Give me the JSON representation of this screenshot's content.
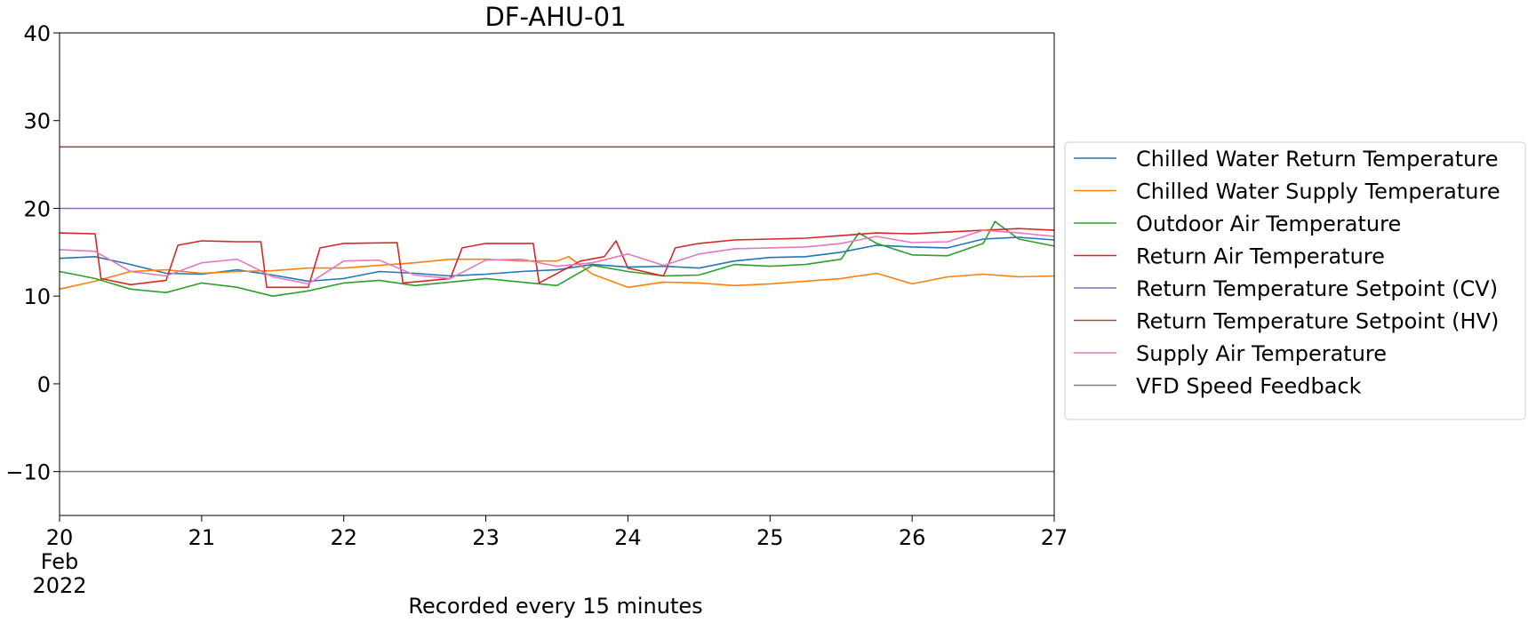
{
  "chart_data": {
    "type": "line",
    "title": "DF-AHU-01",
    "xlabel": "Recorded every 15 minutes",
    "ylabel": "",
    "x_range": [
      "2022-02-20",
      "2022-02-27"
    ],
    "ylim": [
      -15,
      40
    ],
    "y_ticks": [
      -10,
      0,
      10,
      20,
      30,
      40
    ],
    "y_tick_labels": [
      "−10",
      "0",
      "10",
      "20",
      "30",
      "40"
    ],
    "x_ticks": [
      {
        "date": "2022-02-20",
        "label": "20",
        "sublabels": [
          "Feb",
          "2022"
        ]
      },
      {
        "date": "2022-02-21",
        "label": "21",
        "sublabels": []
      },
      {
        "date": "2022-02-22",
        "label": "22",
        "sublabels": []
      },
      {
        "date": "2022-02-23",
        "label": "23",
        "sublabels": []
      },
      {
        "date": "2022-02-24",
        "label": "24",
        "sublabels": []
      },
      {
        "date": "2022-02-25",
        "label": "25",
        "sublabels": []
      },
      {
        "date": "2022-02-26",
        "label": "26",
        "sublabels": []
      },
      {
        "date": "2022-02-27",
        "label": "27",
        "sublabels": []
      }
    ],
    "grid": false,
    "legend_position": "right",
    "series": [
      {
        "name": "Chilled Water Return Temperature",
        "color": "#1f77b4",
        "points": [
          [
            "2022-02-20 00:00",
            14.3
          ],
          [
            "2022-02-20 06:00",
            14.5
          ],
          [
            "2022-02-20 12:00",
            13.6
          ],
          [
            "2022-02-20 18:00",
            12.6
          ],
          [
            "2022-02-21 00:00",
            12.5
          ],
          [
            "2022-02-21 06:00",
            13.0
          ],
          [
            "2022-02-21 12:00",
            12.4
          ],
          [
            "2022-02-21 18:00",
            11.7
          ],
          [
            "2022-02-22 00:00",
            12.0
          ],
          [
            "2022-02-22 06:00",
            12.8
          ],
          [
            "2022-02-22 12:00",
            12.6
          ],
          [
            "2022-02-22 18:00",
            12.3
          ],
          [
            "2022-02-23 00:00",
            12.5
          ],
          [
            "2022-02-23 06:00",
            12.8
          ],
          [
            "2022-02-23 12:00",
            13.0
          ],
          [
            "2022-02-23 18:00",
            13.6
          ],
          [
            "2022-02-24 00:00",
            13.3
          ],
          [
            "2022-02-24 06:00",
            13.4
          ],
          [
            "2022-02-24 12:00",
            13.2
          ],
          [
            "2022-02-24 18:00",
            14.0
          ],
          [
            "2022-02-25 00:00",
            14.4
          ],
          [
            "2022-02-25 06:00",
            14.5
          ],
          [
            "2022-02-25 12:00",
            15.0
          ],
          [
            "2022-02-25 18:00",
            15.8
          ],
          [
            "2022-02-26 00:00",
            15.6
          ],
          [
            "2022-02-26 06:00",
            15.5
          ],
          [
            "2022-02-26 12:00",
            16.5
          ],
          [
            "2022-02-26 18:00",
            16.7
          ],
          [
            "2022-02-27 00:00",
            16.4
          ]
        ]
      },
      {
        "name": "Chilled Water Supply Temperature",
        "color": "#ff7f0e",
        "points": [
          [
            "2022-02-20 00:00",
            10.8
          ],
          [
            "2022-02-20 06:00",
            11.7
          ],
          [
            "2022-02-20 12:00",
            12.8
          ],
          [
            "2022-02-20 18:00",
            13.0
          ],
          [
            "2022-02-21 00:00",
            12.6
          ],
          [
            "2022-02-21 06:00",
            12.8
          ],
          [
            "2022-02-21 12:00",
            12.9
          ],
          [
            "2022-02-21 18:00",
            13.2
          ],
          [
            "2022-02-22 00:00",
            13.2
          ],
          [
            "2022-02-22 06:00",
            13.5
          ],
          [
            "2022-02-22 12:00",
            13.8
          ],
          [
            "2022-02-22 18:00",
            14.2
          ],
          [
            "2022-02-23 00:00",
            14.2
          ],
          [
            "2022-02-23 06:00",
            14.0
          ],
          [
            "2022-02-23 12:00",
            14.0
          ],
          [
            "2022-02-23 14:00",
            14.5
          ],
          [
            "2022-02-23 18:00",
            12.5
          ],
          [
            "2022-02-24 00:00",
            11.0
          ],
          [
            "2022-02-24 06:00",
            11.6
          ],
          [
            "2022-02-24 12:00",
            11.5
          ],
          [
            "2022-02-24 18:00",
            11.2
          ],
          [
            "2022-02-25 00:00",
            11.4
          ],
          [
            "2022-02-25 06:00",
            11.7
          ],
          [
            "2022-02-25 12:00",
            12.0
          ],
          [
            "2022-02-25 18:00",
            12.6
          ],
          [
            "2022-02-26 00:00",
            11.4
          ],
          [
            "2022-02-26 06:00",
            12.2
          ],
          [
            "2022-02-26 12:00",
            12.5
          ],
          [
            "2022-02-26 18:00",
            12.2
          ],
          [
            "2022-02-27 00:00",
            12.3
          ]
        ]
      },
      {
        "name": "Outdoor Air Temperature",
        "color": "#2ca02c",
        "points": [
          [
            "2022-02-20 00:00",
            12.8
          ],
          [
            "2022-02-20 06:00",
            12.0
          ],
          [
            "2022-02-20 12:00",
            10.8
          ],
          [
            "2022-02-20 18:00",
            10.4
          ],
          [
            "2022-02-21 00:00",
            11.5
          ],
          [
            "2022-02-21 06:00",
            11.0
          ],
          [
            "2022-02-21 12:00",
            10.0
          ],
          [
            "2022-02-21 18:00",
            10.6
          ],
          [
            "2022-02-22 00:00",
            11.5
          ],
          [
            "2022-02-22 06:00",
            11.8
          ],
          [
            "2022-02-22 12:00",
            11.2
          ],
          [
            "2022-02-22 18:00",
            11.6
          ],
          [
            "2022-02-23 00:00",
            12.0
          ],
          [
            "2022-02-23 06:00",
            11.6
          ],
          [
            "2022-02-23 12:00",
            11.2
          ],
          [
            "2022-02-23 18:00",
            13.5
          ],
          [
            "2022-02-24 00:00",
            12.8
          ],
          [
            "2022-02-24 06:00",
            12.3
          ],
          [
            "2022-02-24 12:00",
            12.4
          ],
          [
            "2022-02-24 18:00",
            13.6
          ],
          [
            "2022-02-25 00:00",
            13.4
          ],
          [
            "2022-02-25 06:00",
            13.6
          ],
          [
            "2022-02-25 12:00",
            14.2
          ],
          [
            "2022-02-25 15:00",
            17.2
          ],
          [
            "2022-02-25 18:00",
            16.0
          ],
          [
            "2022-02-26 00:00",
            14.7
          ],
          [
            "2022-02-26 06:00",
            14.6
          ],
          [
            "2022-02-26 12:00",
            16.0
          ],
          [
            "2022-02-26 14:00",
            18.5
          ],
          [
            "2022-02-26 18:00",
            16.5
          ],
          [
            "2022-02-27 00:00",
            15.7
          ]
        ]
      },
      {
        "name": "Return Air Temperature",
        "color": "#d62728",
        "points": [
          [
            "2022-02-20 00:00",
            17.2
          ],
          [
            "2022-02-20 06:00",
            17.1
          ],
          [
            "2022-02-20 07:00",
            12.0
          ],
          [
            "2022-02-20 12:00",
            11.3
          ],
          [
            "2022-02-20 18:00",
            11.8
          ],
          [
            "2022-02-20 20:00",
            15.8
          ],
          [
            "2022-02-21 00:00",
            16.3
          ],
          [
            "2022-02-21 06:00",
            16.2
          ],
          [
            "2022-02-21 10:00",
            16.2
          ],
          [
            "2022-02-21 11:00",
            11.0
          ],
          [
            "2022-02-21 18:00",
            11.0
          ],
          [
            "2022-02-21 20:00",
            15.5
          ],
          [
            "2022-02-22 00:00",
            16.0
          ],
          [
            "2022-02-22 09:00",
            16.1
          ],
          [
            "2022-02-22 10:00",
            11.5
          ],
          [
            "2022-02-22 18:00",
            12.0
          ],
          [
            "2022-02-22 20:00",
            15.5
          ],
          [
            "2022-02-23 00:00",
            16.0
          ],
          [
            "2022-02-23 08:00",
            16.0
          ],
          [
            "2022-02-23 09:00",
            11.5
          ],
          [
            "2022-02-23 16:00",
            14.0
          ],
          [
            "2022-02-23 20:00",
            14.5
          ],
          [
            "2022-02-23 22:00",
            16.3
          ],
          [
            "2022-02-24 00:00",
            13.2
          ],
          [
            "2022-02-24 06:00",
            12.3
          ],
          [
            "2022-02-24 08:00",
            15.5
          ],
          [
            "2022-02-24 12:00",
            16.0
          ],
          [
            "2022-02-24 18:00",
            16.4
          ],
          [
            "2022-02-25 00:00",
            16.5
          ],
          [
            "2022-02-25 06:00",
            16.6
          ],
          [
            "2022-02-25 12:00",
            16.9
          ],
          [
            "2022-02-25 18:00",
            17.2
          ],
          [
            "2022-02-26 00:00",
            17.1
          ],
          [
            "2022-02-26 06:00",
            17.3
          ],
          [
            "2022-02-26 12:00",
            17.5
          ],
          [
            "2022-02-26 18:00",
            17.7
          ],
          [
            "2022-02-27 00:00",
            17.5
          ]
        ]
      },
      {
        "name": "Return Temperature Setpoint (CV)",
        "color": "#9467bd",
        "points": [
          [
            "2022-02-20 00:00",
            20.0
          ],
          [
            "2022-02-27 00:00",
            20.0
          ]
        ]
      },
      {
        "name": "Return Temperature Setpoint (HV)",
        "color": "#8c564b",
        "points": [
          [
            "2022-02-20 00:00",
            27.0
          ],
          [
            "2022-02-27 00:00",
            27.0
          ]
        ]
      },
      {
        "name": "Supply Air Temperature",
        "color": "#e377c2",
        "points": [
          [
            "2022-02-20 00:00",
            15.3
          ],
          [
            "2022-02-20 06:00",
            15.1
          ],
          [
            "2022-02-20 12:00",
            12.8
          ],
          [
            "2022-02-20 18:00",
            12.3
          ],
          [
            "2022-02-21 00:00",
            13.8
          ],
          [
            "2022-02-21 06:00",
            14.2
          ],
          [
            "2022-02-21 12:00",
            12.2
          ],
          [
            "2022-02-21 18:00",
            11.4
          ],
          [
            "2022-02-22 00:00",
            14.0
          ],
          [
            "2022-02-22 06:00",
            14.1
          ],
          [
            "2022-02-22 12:00",
            12.4
          ],
          [
            "2022-02-22 18:00",
            12.0
          ],
          [
            "2022-02-23 00:00",
            14.1
          ],
          [
            "2022-02-23 06:00",
            14.2
          ],
          [
            "2022-02-23 12:00",
            13.4
          ],
          [
            "2022-02-23 18:00",
            13.8
          ],
          [
            "2022-02-24 00:00",
            14.8
          ],
          [
            "2022-02-24 06:00",
            13.5
          ],
          [
            "2022-02-24 12:00",
            14.8
          ],
          [
            "2022-02-24 18:00",
            15.4
          ],
          [
            "2022-02-25 00:00",
            15.5
          ],
          [
            "2022-02-25 06:00",
            15.6
          ],
          [
            "2022-02-25 12:00",
            16.0
          ],
          [
            "2022-02-25 18:00",
            16.8
          ],
          [
            "2022-02-26 00:00",
            16.1
          ],
          [
            "2022-02-26 06:00",
            16.2
          ],
          [
            "2022-02-26 12:00",
            17.5
          ],
          [
            "2022-02-26 18:00",
            17.2
          ],
          [
            "2022-02-27 00:00",
            16.8
          ]
        ]
      },
      {
        "name": "VFD Speed Feedback",
        "color": "#7f7f7f",
        "points": [
          [
            "2022-02-20 00:00",
            -10.0
          ],
          [
            "2022-02-27 00:00",
            -10.0
          ]
        ]
      }
    ]
  }
}
